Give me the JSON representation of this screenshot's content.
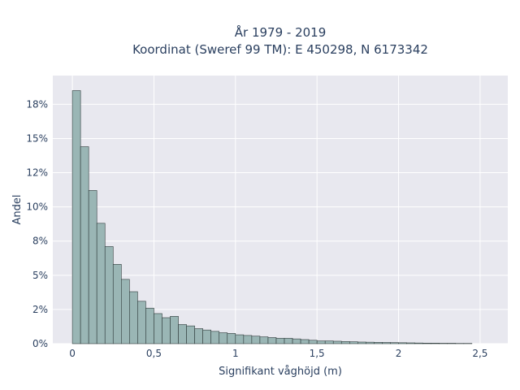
{
  "chart_data": {
    "type": "bar",
    "title_lines": [
      "År 1979 - 2019",
      "Koordinat (Sweref 99 TM): E 450298, N 6173342"
    ],
    "xlabel": "Signifikant våghöjd (m)",
    "ylabel": "Andel",
    "xlim": [
      -0.12,
      2.67
    ],
    "ylim": [
      0,
      0.196
    ],
    "x_ticks": [
      {
        "value": 0,
        "label": "0"
      },
      {
        "value": 0.5,
        "label": "0,5"
      },
      {
        "value": 1,
        "label": "1"
      },
      {
        "value": 1.5,
        "label": "1,5"
      },
      {
        "value": 2,
        "label": "2"
      },
      {
        "value": 2.5,
        "label": "2,5"
      }
    ],
    "y_ticks": [
      {
        "value": 0,
        "label": "0%"
      },
      {
        "value": 0.025,
        "label": "2%"
      },
      {
        "value": 0.05,
        "label": "5%"
      },
      {
        "value": 0.075,
        "label": "8%"
      },
      {
        "value": 0.1,
        "label": "10%"
      },
      {
        "value": 0.125,
        "label": "12%"
      },
      {
        "value": 0.15,
        "label": "15%"
      },
      {
        "value": 0.175,
        "label": "18%"
      }
    ],
    "bin_width": 0.05,
    "bin_starts": [
      0,
      0.05,
      0.1,
      0.15,
      0.2,
      0.25,
      0.3,
      0.35,
      0.4,
      0.45,
      0.5,
      0.55,
      0.6,
      0.65,
      0.7,
      0.75,
      0.8,
      0.85,
      0.9,
      0.95,
      1.0,
      1.05,
      1.1,
      1.15,
      1.2,
      1.25,
      1.3,
      1.35,
      1.4,
      1.45,
      1.5,
      1.55,
      1.6,
      1.65,
      1.7,
      1.75,
      1.8,
      1.85,
      1.9,
      1.95,
      2.0,
      2.05,
      2.1,
      2.15,
      2.2,
      2.25,
      2.3,
      2.35,
      2.4
    ],
    "values": [
      0.185,
      0.144,
      0.112,
      0.088,
      0.071,
      0.058,
      0.047,
      0.038,
      0.031,
      0.026,
      0.022,
      0.019,
      0.02,
      0.014,
      0.013,
      0.011,
      0.01,
      0.009,
      0.008,
      0.0075,
      0.0065,
      0.006,
      0.0055,
      0.005,
      0.0045,
      0.004,
      0.004,
      0.0035,
      0.003,
      0.0025,
      0.002,
      0.002,
      0.0018,
      0.0016,
      0.0014,
      0.0012,
      0.0011,
      0.001,
      0.0009,
      0.0008,
      0.0007,
      0.0006,
      0.0005,
      0.0004,
      0.0004,
      0.0003,
      0.0003,
      0.0002,
      0.0002
    ],
    "bar_color": "#9ab6b5",
    "bar_edge_color": "#2f3b3b",
    "plot_bg": "#e8e8ef",
    "grid": true
  }
}
